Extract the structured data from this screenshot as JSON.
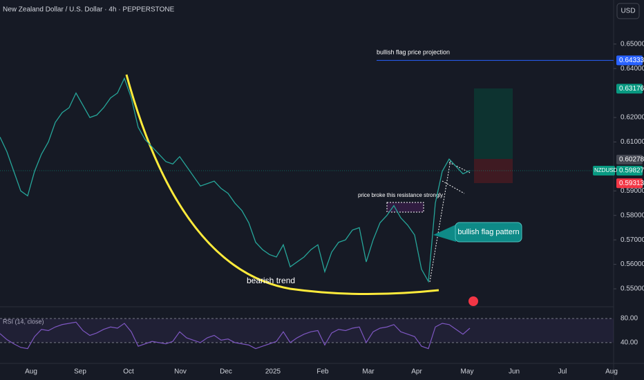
{
  "chart_data": {
    "type": "line",
    "title": "New Zealand Dollar / U.S. Dollar · 4h · PEPPERSTONE",
    "currency": "USD",
    "symbol": "NZDUSD",
    "series": [
      {
        "name": "NZDUSD",
        "color": "#26a69a",
        "values": [
          0.612,
          0.606,
          0.598,
          0.59,
          0.588,
          0.598,
          0.605,
          0.61,
          0.618,
          0.622,
          0.624,
          0.63,
          0.625,
          0.62,
          0.621,
          0.624,
          0.628,
          0.63,
          0.636,
          0.628,
          0.616,
          0.611,
          0.608,
          0.605,
          0.602,
          0.601,
          0.604,
          0.6,
          0.596,
          0.592,
          0.593,
          0.594,
          0.591,
          0.589,
          0.585,
          0.582,
          0.577,
          0.569,
          0.566,
          0.564,
          0.563,
          0.568,
          0.559,
          0.561,
          0.563,
          0.566,
          0.568,
          0.557,
          0.565,
          0.569,
          0.57,
          0.574,
          0.575,
          0.561,
          0.57,
          0.577,
          0.58,
          0.584,
          0.579,
          0.576,
          0.572,
          0.558,
          0.553,
          0.585,
          0.598,
          0.603,
          0.6,
          0.597,
          0.5983
        ]
      }
    ],
    "xticks": [
      "Aug",
      "Sep",
      "Oct",
      "Nov",
      "Dec",
      "2025",
      "Feb",
      "Mar",
      "Apr",
      "May",
      "Jun",
      "Jul",
      "Aug"
    ],
    "ylim": [
      0.5438,
      0.668
    ],
    "yticks": [
      {
        "value": 0.55,
        "label": "0.55000"
      },
      {
        "value": 0.56,
        "label": "0.56000"
      },
      {
        "value": 0.57,
        "label": "0.57000"
      },
      {
        "value": 0.58,
        "label": "0.58000"
      },
      {
        "value": 0.59,
        "label": "0.59000"
      },
      {
        "value": 0.61,
        "label": "0.61000"
      },
      {
        "value": 0.62,
        "label": "0.62000"
      },
      {
        "value": 0.64,
        "label": "0.64000"
      },
      {
        "value": 0.65,
        "label": "0.65000"
      }
    ],
    "price_labels": [
      {
        "value": 0.64333,
        "color": "#2962ff"
      },
      {
        "value": 0.63176,
        "color": "#089981"
      },
      {
        "value": 0.60278,
        "color": "#434651"
      },
      {
        "value": 0.59827,
        "color": "#089981"
      },
      {
        "value": 0.59313,
        "color": "#f23645"
      }
    ],
    "annotations": [
      "bullish flag price projection",
      "price broke this resistance strongly",
      "bullish flag pattern",
      "bearish trend"
    ],
    "rsi": {
      "title": "RSI (14, close)",
      "color": "#7e57c2",
      "ylim": [
        10,
        95
      ],
      "yticks": [
        {
          "value": 80,
          "label": "80.00"
        },
        {
          "value": 40,
          "label": "40.00"
        }
      ],
      "values": [
        55,
        45,
        38,
        32,
        30,
        50,
        62,
        60,
        66,
        70,
        72,
        74,
        60,
        52,
        56,
        62,
        66,
        64,
        72,
        58,
        34,
        38,
        42,
        40,
        38,
        42,
        58,
        48,
        44,
        40,
        48,
        52,
        44,
        46,
        40,
        38,
        36,
        30,
        34,
        38,
        42,
        58,
        40,
        48,
        54,
        58,
        60,
        36,
        56,
        62,
        60,
        64,
        66,
        40,
        58,
        64,
        66,
        70,
        58,
        54,
        50,
        34,
        30,
        66,
        72,
        70,
        62,
        54,
        64
      ]
    }
  }
}
